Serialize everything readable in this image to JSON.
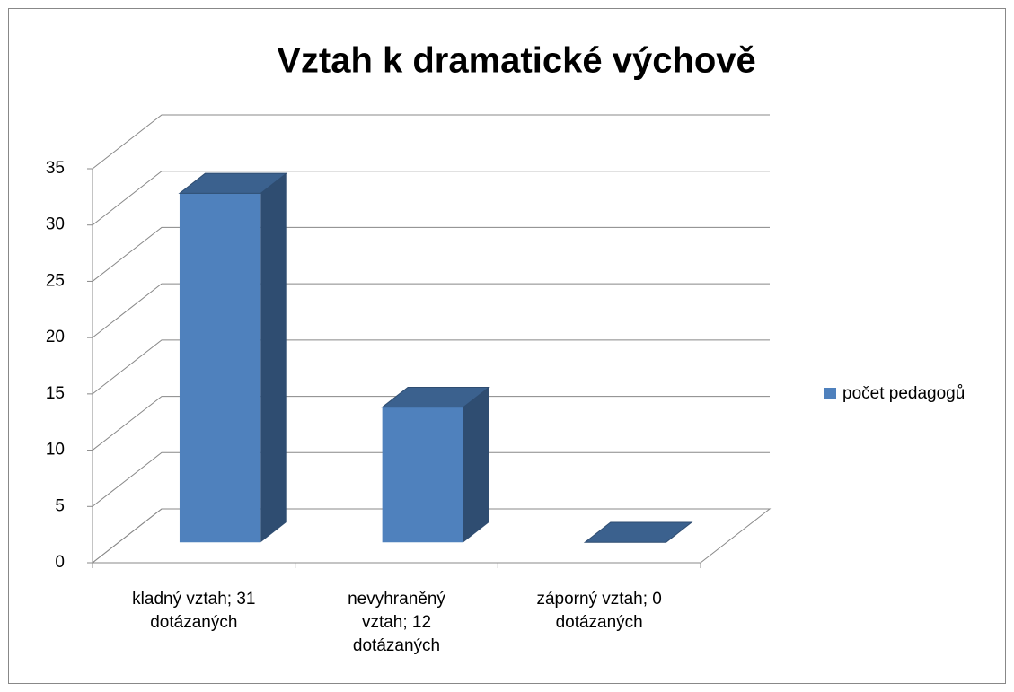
{
  "chart_data": {
    "type": "bar3d",
    "title": "Vztah k dramatické výchově",
    "categories": [
      "kladný vztah; 31 dotázaných",
      "nevyhraněný vztah; 12 dotázaných",
      "záporný vztah; 0 dotázaných"
    ],
    "series": [
      {
        "name": "počet pedagogů",
        "color": "#4f81bd",
        "values": [
          31,
          12,
          0
        ]
      }
    ],
    "ylim": [
      0,
      35
    ],
    "yticks": [
      0,
      5,
      10,
      15,
      20,
      25,
      30,
      35
    ],
    "grid": true,
    "legend": "right"
  }
}
